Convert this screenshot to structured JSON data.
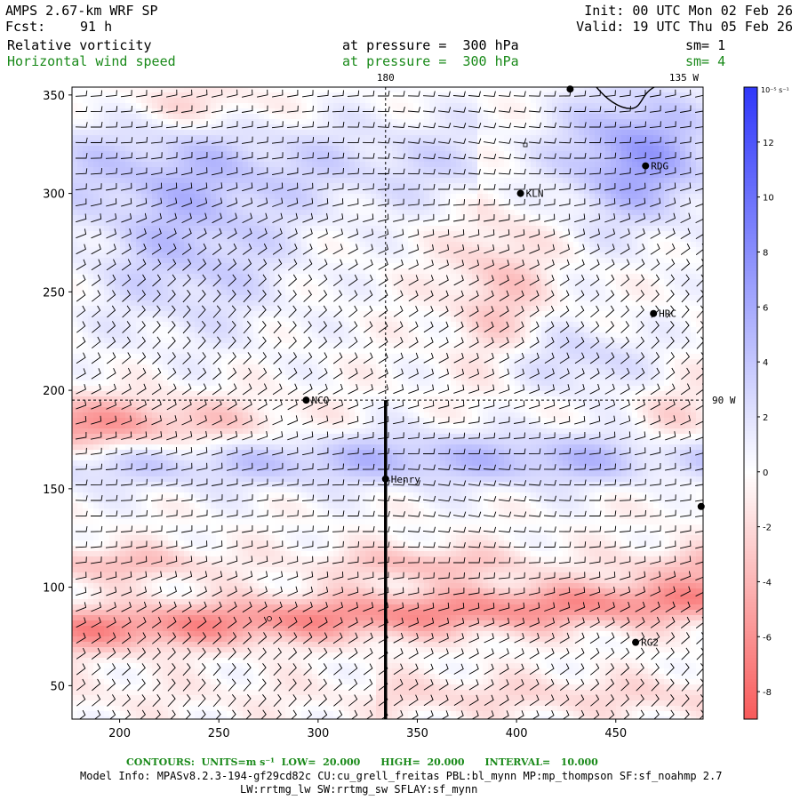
{
  "header": {
    "model": "AMPS 2.67-km WRF SP",
    "fcst_label": "Fcst:",
    "fcst_value": "91 h",
    "init": "Init: 00 UTC Mon 02 Feb 26",
    "valid": "Valid: 19 UTC Thu 05 Feb 26",
    "field1_name": "Relative vorticity",
    "field1_level": "at pressure =  300 hPa",
    "field1_sm": "sm= 1",
    "field2_name": "Horizontal wind speed",
    "field2_level": "at pressure =  300 hPa",
    "field2_sm": "sm= 4"
  },
  "map": {
    "x_ticks": [
      "200",
      "250",
      "300",
      "350",
      "400",
      "450"
    ],
    "x_tick_values": [
      200,
      250,
      300,
      350,
      400,
      450
    ],
    "y_ticks": [
      "350",
      "300",
      "250",
      "200",
      "150",
      "100",
      "50"
    ],
    "y_tick_values": [
      350,
      300,
      250,
      200,
      150,
      100,
      50
    ],
    "x_range": [
      176,
      494
    ],
    "y_range": [
      33,
      354
    ],
    "meridian_labels": [
      "180",
      "135 W",
      "90 W"
    ],
    "stations": [
      {
        "name": "KLN",
        "x": 402,
        "y": 300
      },
      {
        "name": "RDG",
        "x": 465,
        "y": 314
      },
      {
        "name": "HRC",
        "x": 469,
        "y": 239
      },
      {
        "name": "NCO",
        "x": 294,
        "y": 195
      },
      {
        "name": "Henry",
        "x": 334,
        "y": 155
      },
      {
        "name": "RG2",
        "x": 460,
        "y": 72
      },
      {
        "name": "",
        "x": 493,
        "y": 141
      },
      {
        "name": "",
        "x": 427,
        "y": 353
      }
    ],
    "cross_section": {
      "x": 334,
      "y_start": 33,
      "y_end": 195
    }
  },
  "colorbar": {
    "units": "10⁻⁵ s⁻¹",
    "labels": [
      "12",
      "10",
      "8",
      "6",
      "4",
      "2",
      "0",
      "-2",
      "-4",
      "-6",
      "-8"
    ],
    "label_values": [
      12,
      10,
      8,
      6,
      4,
      2,
      0,
      -2,
      -4,
      -6,
      -8
    ],
    "min": -9,
    "max": 14
  },
  "footer": {
    "contours": "CONTOURS:  UNITS=m s⁻¹  LOW=  20.000      HIGH=  20.000      INTERVAL=   10.000",
    "model_info": "Model Info: MPASv8.2.3-194-gf29cd82c CU:cu_grell_freitas PBL:bl_mynn MP:mp_thompson SF:sf_noahmp 2.7",
    "model_info2": "LW:rrtmg_lw SW:rrtmg_sw SFLAY:sf_mynn"
  }
}
